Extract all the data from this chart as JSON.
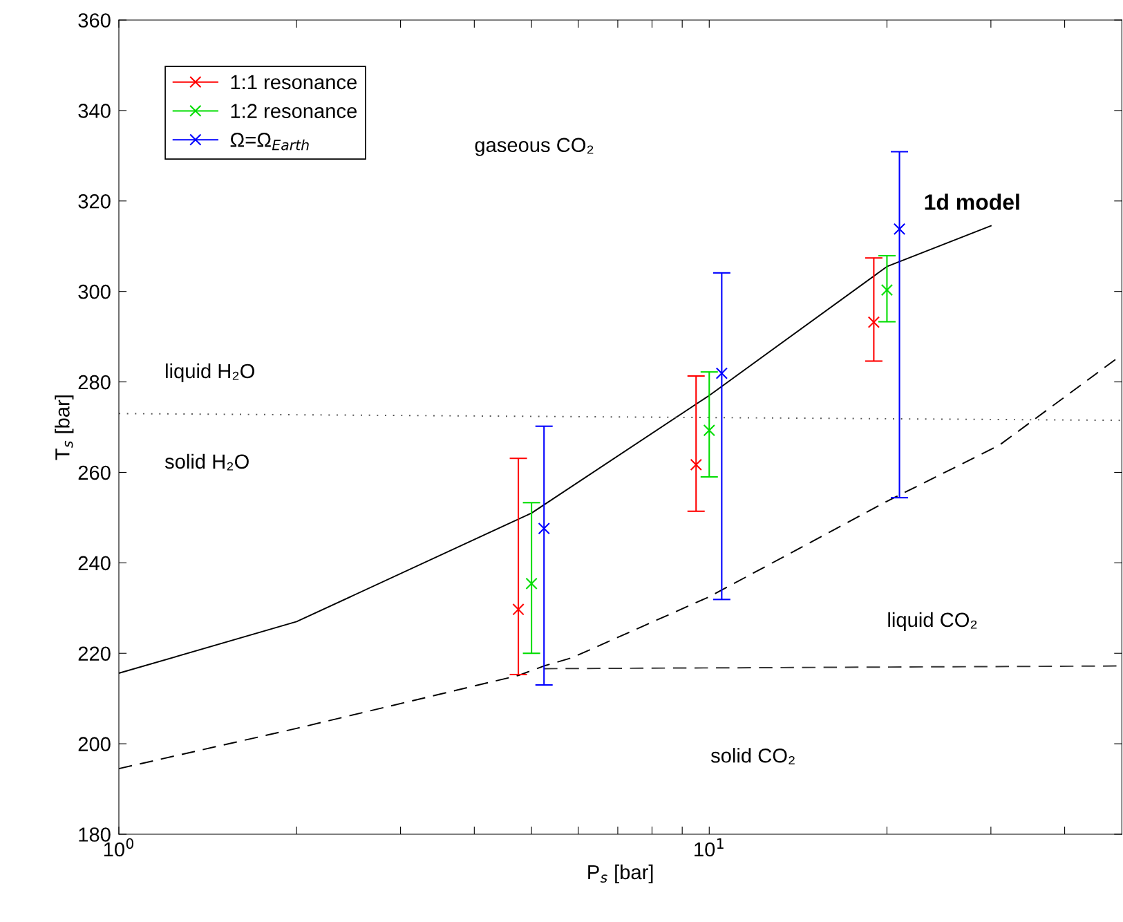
{
  "chart_data": {
    "type": "line",
    "xlabel": "P$_{s}$ [bar]",
    "ylabel": "T$_{s}$ [bar]",
    "log": "x",
    "xlim": [
      1,
      50
    ],
    "xticks": [
      {
        "value": 1,
        "label": "10$^{0}$"
      },
      {
        "value": 2,
        "label": null
      },
      {
        "value": 3,
        "label": null
      },
      {
        "value": 4,
        "label": null
      },
      {
        "value": 5,
        "label": null
      },
      {
        "value": 6,
        "label": null
      },
      {
        "value": 7,
        "label": null
      },
      {
        "value": 8,
        "label": null
      },
      {
        "value": 9,
        "label": null
      },
      {
        "value": 10,
        "label": "10$^{1}$"
      },
      {
        "value": 20,
        "label": null
      },
      {
        "value": 30,
        "label": null
      },
      {
        "value": 40,
        "label": null
      }
    ],
    "ylim": [
      180,
      360
    ],
    "yticks": [
      180,
      200,
      220,
      240,
      260,
      280,
      300,
      320,
      340,
      360
    ],
    "grid": false,
    "legend": "top left",
    "series": [
      {
        "type": "line",
        "color": "#000000",
        "line_style": "solid",
        "x": [
          1,
          2,
          5,
          10,
          20,
          30
        ],
        "values": [
          215.6,
          227,
          251,
          277,
          305.5,
          314.5
        ]
      },
      {
        "type": "line",
        "color": "#000000",
        "line_style": "dashed",
        "x": [
          1,
          2,
          4.75,
          5.25,
          5.85,
          10,
          20,
          31,
          50
        ],
        "values": [
          194.5,
          203.4,
          215.1,
          217.2,
          219,
          232.5,
          253.6,
          266,
          286
        ]
      },
      {
        "type": "line",
        "color": "#333333",
        "line_style": "dashed",
        "x": [
          5.25,
          50
        ],
        "values": [
          216.6,
          217.2
        ]
      },
      {
        "type": "line",
        "color": "#555555",
        "line_style": "dotted",
        "x": [
          1,
          50
        ],
        "values": [
          273,
          271.5
        ]
      },
      {
        "type": "scatter",
        "name": "1:1 resonance",
        "color": "#ff0000",
        "marker": "cross",
        "x": [
          4.75,
          9.5,
          19
        ],
        "values": [
          229.7,
          261.7,
          293.2
        ],
        "errors": [
          [
            215.3,
            263.1
          ],
          [
            251.4,
            281.3
          ],
          [
            284.6,
            307.4
          ]
        ]
      },
      {
        "type": "scatter",
        "name": "1:2 resonance",
        "color": "#00dd00",
        "marker": "cross",
        "x": [
          5,
          10,
          20
        ],
        "values": [
          235.4,
          269.3,
          300.3
        ],
        "errors": [
          [
            220,
            253.3
          ],
          [
            259,
            282.2
          ],
          [
            293.3,
            307.9
          ]
        ]
      },
      {
        "type": "scatter",
        "name": "Ω=Ω$_{Earth}$",
        "color": "#0000ff",
        "marker": "cross",
        "x": [
          5.25,
          10.5,
          21
        ],
        "values": [
          247.6,
          281.9,
          313.8
        ],
        "errors": [
          [
            213,
            270.2
          ],
          [
            231.9,
            304.1
          ],
          [
            254.4,
            330.9
          ]
        ]
      }
    ],
    "annotations": [
      "gaseous CO₂",
      "liquid H₂O",
      "solid H₂O",
      "liquid CO₂",
      "solid CO₂",
      {
        "text": "1d model",
        "x": 30,
        "y": 314.5
      }
    ]
  }
}
